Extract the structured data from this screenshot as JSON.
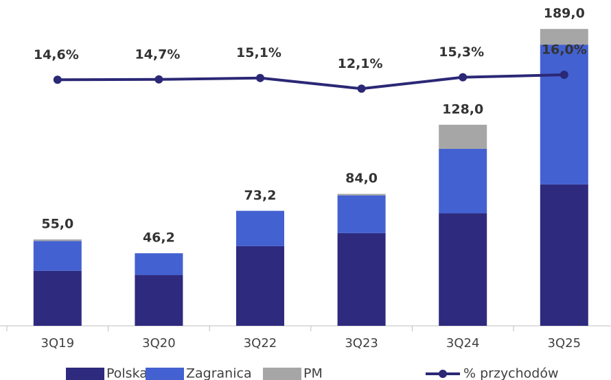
{
  "chart_data": {
    "type": "bar",
    "categories": [
      "3Q19",
      "3Q20",
      "3Q22",
      "3Q23",
      "3Q24",
      "3Q25"
    ],
    "series": [
      {
        "name": "Polska",
        "color": "#2e2a7e",
        "values": [
          35,
          32.3,
          50.7,
          59,
          71.6,
          90
        ]
      },
      {
        "name": "Zagranica",
        "color": "#4361d0",
        "values": [
          19,
          13.9,
          22.5,
          24,
          41.1,
          89
        ]
      },
      {
        "name": "PM",
        "color": "#a6a6a6",
        "values": [
          1,
          0,
          0,
          1,
          15.3,
          10
        ]
      },
      {
        "name": "% przychodów",
        "type": "line",
        "axis": "y2",
        "color": "#2b2876",
        "values": [
          14.6,
          14.7,
          15.1,
          12.1,
          15.3,
          16.0
        ],
        "value_labels": [
          "14,6%",
          "14,7%",
          "15,1%",
          "12,1%",
          "15,3%",
          "16,0%"
        ]
      }
    ],
    "totals": [
      55.0,
      46.2,
      73.2,
      84.0,
      128.0,
      189.0
    ],
    "totals_labels": [
      "55,0",
      "46,2",
      "73,2",
      "84,0",
      "128,0",
      "189,0"
    ],
    "ylim": [
      0,
      200
    ],
    "y2lim": [
      -54.4,
      33.7
    ],
    "stacked": true,
    "grid": false
  }
}
